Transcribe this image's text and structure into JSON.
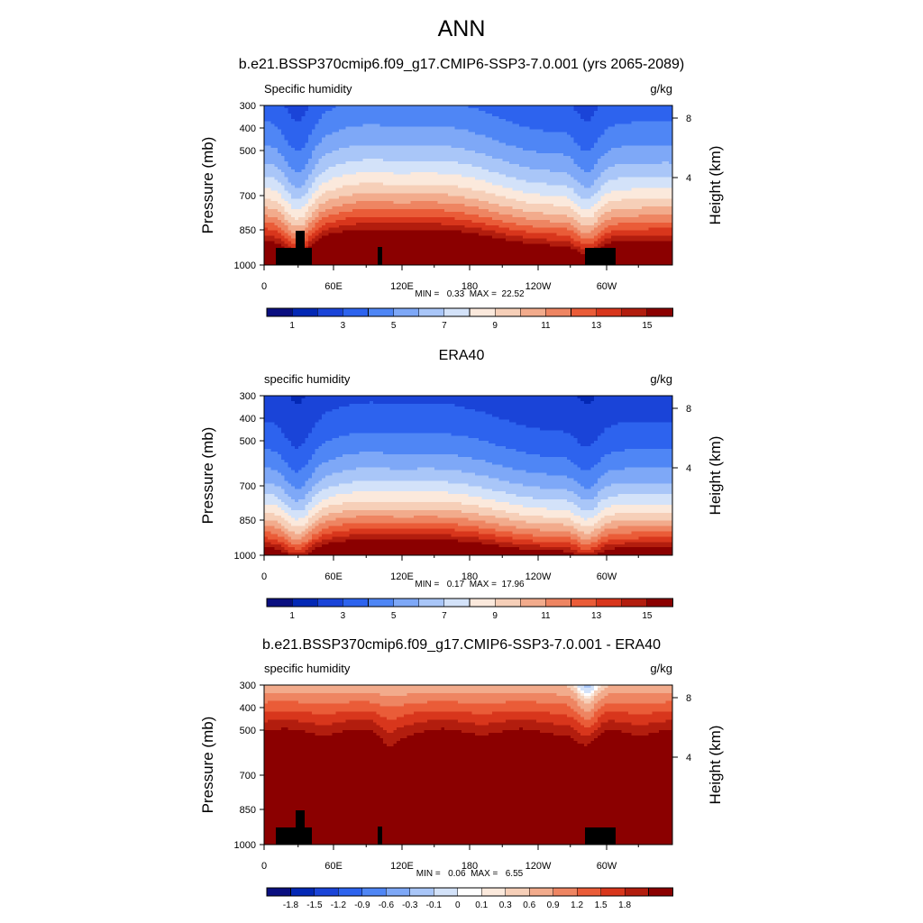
{
  "figure_title": "ANN",
  "colors": {
    "abs_palette": [
      "#0a0f80",
      "#0328b5",
      "#1a44d8",
      "#2d63ee",
      "#4f86f5",
      "#7ea8f7",
      "#a9c6f8",
      "#d3e2f9",
      "#fbe9dc",
      "#f6cfb8",
      "#f2ab8c",
      "#ee8562",
      "#ea5c38",
      "#d8361c",
      "#b21d0e",
      "#8b0000"
    ],
    "diff_palette": [
      "#0a0f80",
      "#0328b5",
      "#1a44d8",
      "#2d63ee",
      "#4f86f5",
      "#7ea8f7",
      "#a9c6f8",
      "#d3e2f9",
      "#ffffff",
      "#fbe9dc",
      "#f6cfb8",
      "#f2ab8c",
      "#ee8562",
      "#ea5c38",
      "#d8361c",
      "#b21d0e",
      "#8b0000"
    ],
    "land": "#000000"
  },
  "chart_data": [
    {
      "type": "heatmap",
      "title": "b.e21.BSSP370cmip6.f09_g17.CMIP6-SSP3-7.0.001 (yrs 2065-2089)",
      "left_label": "Specific humidity",
      "right_label": "g/kg",
      "ylabel": "Pressure (mb)",
      "ylabel_right": "Height (km)",
      "y_ticks": [
        "300",
        "400",
        "500",
        "700",
        "850",
        "1000"
      ],
      "y_ticks_right": [
        "8",
        "4"
      ],
      "x_ticks": [
        "0",
        "60E",
        "120E",
        "180",
        "120W",
        "60W"
      ],
      "stats": "MIN =   0.33  MAX =  22.52",
      "colorbar_labels": [
        "1",
        "3",
        "5",
        "7",
        "9",
        "11",
        "13",
        "15"
      ],
      "xlim": [
        0,
        360
      ],
      "ylim": [
        1000,
        300
      ],
      "field": "model"
    },
    {
      "type": "heatmap",
      "title": "ERA40",
      "left_label": "specific humidity",
      "right_label": "g/kg",
      "ylabel": "Pressure (mb)",
      "ylabel_right": "Height (km)",
      "y_ticks": [
        "300",
        "400",
        "500",
        "700",
        "850",
        "1000"
      ],
      "y_ticks_right": [
        "8",
        "4"
      ],
      "x_ticks": [
        "0",
        "60E",
        "120E",
        "180",
        "120W",
        "60W"
      ],
      "stats": "MIN =   0.17  MAX =  17.96",
      "colorbar_labels": [
        "1",
        "3",
        "5",
        "7",
        "9",
        "11",
        "13",
        "15"
      ],
      "xlim": [
        0,
        360
      ],
      "ylim": [
        1000,
        300
      ],
      "field": "obs"
    },
    {
      "type": "heatmap",
      "title": "b.e21.BSSP370cmip6.f09_g17.CMIP6-SSP3-7.0.001 - ERA40",
      "left_label": "specific humidity",
      "right_label": "g/kg",
      "ylabel": "Pressure (mb)",
      "ylabel_right": "Height (km)",
      "y_ticks": [
        "300",
        "400",
        "500",
        "700",
        "850",
        "1000"
      ],
      "y_ticks_right": [
        "8",
        "4"
      ],
      "x_ticks": [
        "0",
        "60E",
        "120E",
        "180",
        "120W",
        "60W"
      ],
      "stats": "MIN =   0.06  MAX =   6.55",
      "colorbar_labels": [
        "-1.8",
        "-1.5",
        "-1.2",
        "-0.9",
        "-0.6",
        "-0.3",
        "-0.1",
        "0",
        "0.1",
        "0.3",
        "0.6",
        "0.9",
        "1.2",
        "1.5",
        "1.8"
      ],
      "xlim": [
        0,
        360
      ],
      "ylim": [
        1000,
        300
      ],
      "field": "diff"
    }
  ]
}
